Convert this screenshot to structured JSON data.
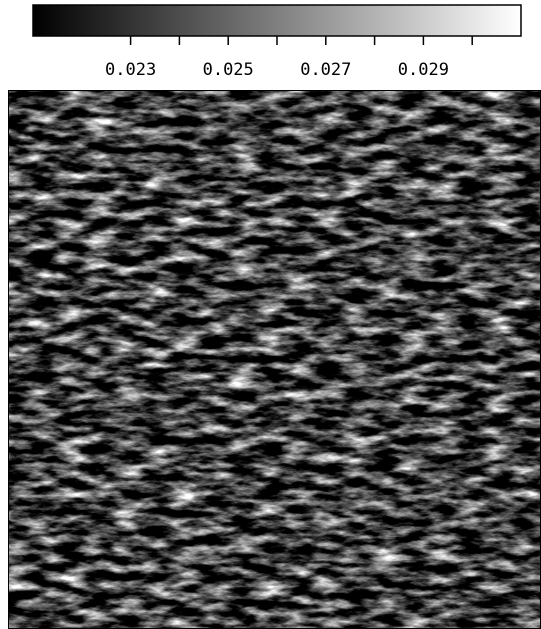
{
  "chart_data": {
    "type": "heatmap",
    "clim": [
      0.021,
      0.031
    ],
    "cticks": [
      0.023,
      0.025,
      0.027,
      0.029
    ],
    "minor_cticks": [
      0.024,
      0.026,
      0.028,
      0.03
    ],
    "colormap": [
      "#000000",
      "#ffffff"
    ]
  }
}
